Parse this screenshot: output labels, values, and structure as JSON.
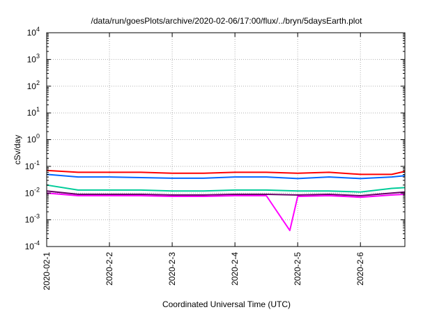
{
  "chart_data": {
    "type": "line",
    "title": "/data/run/goesPlots/archive/2020-02-06/17:00/flux/../bryn/5daysEarth.plot",
    "xlabel": "Coordinated Universal Time (UTC)",
    "ylabel": "cSv/day",
    "log_y": true,
    "ylim": [
      0.0001,
      10000
    ],
    "xlim": [
      "2020-02-01T00:00",
      "2020-02-06T17:00"
    ],
    "x_ticks": [
      "2020-02-1",
      "2020-2-2",
      "2020-2-3",
      "2020-2-4",
      "2020-2-5",
      "2020-2-6"
    ],
    "y_ticks": [
      {
        "base": "10",
        "exp": "-4"
      },
      {
        "base": "10",
        "exp": "-3"
      },
      {
        "base": "10",
        "exp": "-2"
      },
      {
        "base": "10",
        "exp": "-1"
      },
      {
        "base": "10",
        "exp": "0"
      },
      {
        "base": "10",
        "exp": "1"
      },
      {
        "base": "10",
        "exp": "2"
      },
      {
        "base": "10",
        "exp": "3"
      },
      {
        "base": "10",
        "exp": "4"
      }
    ],
    "grid": true,
    "series": [
      {
        "color": "#ff0000",
        "x": [
          "2020-02-01T00:00",
          "2020-02-01T12:00",
          "2020-02-02T00:00",
          "2020-02-02T12:00",
          "2020-02-03T00:00",
          "2020-02-03T12:00",
          "2020-02-04T00:00",
          "2020-02-04T12:00",
          "2020-02-05T00:00",
          "2020-02-05T12:00",
          "2020-02-06T00:00",
          "2020-02-06T12:00",
          "2020-02-06T17:00"
        ],
        "y": [
          0.07,
          0.06,
          0.06,
          0.06,
          0.055,
          0.055,
          0.06,
          0.06,
          0.055,
          0.06,
          0.05,
          0.05,
          0.065
        ]
      },
      {
        "color": "#0066ff",
        "x": [
          "2020-02-01T00:00",
          "2020-02-01T12:00",
          "2020-02-02T00:00",
          "2020-02-02T12:00",
          "2020-02-03T00:00",
          "2020-02-03T12:00",
          "2020-02-04T00:00",
          "2020-02-04T12:00",
          "2020-02-05T00:00",
          "2020-02-05T12:00",
          "2020-02-06T00:00",
          "2020-02-06T12:00",
          "2020-02-06T17:00"
        ],
        "y": [
          0.05,
          0.04,
          0.04,
          0.038,
          0.036,
          0.036,
          0.04,
          0.04,
          0.035,
          0.04,
          0.035,
          0.04,
          0.045
        ]
      },
      {
        "color": "#00cc99",
        "x": [
          "2020-02-01T00:00",
          "2020-02-01T12:00",
          "2020-02-02T00:00",
          "2020-02-02T12:00",
          "2020-02-03T00:00",
          "2020-02-03T12:00",
          "2020-02-04T00:00",
          "2020-02-04T12:00",
          "2020-02-05T00:00",
          "2020-02-05T12:00",
          "2020-02-06T00:00",
          "2020-02-06T12:00",
          "2020-02-06T17:00"
        ],
        "y": [
          0.02,
          0.013,
          0.013,
          0.013,
          0.012,
          0.012,
          0.013,
          0.013,
          0.012,
          0.012,
          0.011,
          0.015,
          0.016
        ]
      },
      {
        "color": "#660066",
        "x": [
          "2020-02-01T00:00",
          "2020-02-01T12:00",
          "2020-02-02T00:00",
          "2020-02-02T12:00",
          "2020-02-03T00:00",
          "2020-02-03T12:00",
          "2020-02-04T00:00",
          "2020-02-04T12:00",
          "2020-02-05T00:00",
          "2020-02-05T12:00",
          "2020-02-06T00:00",
          "2020-02-06T12:00",
          "2020-02-06T17:00"
        ],
        "y": [
          0.012,
          0.009,
          0.009,
          0.009,
          0.0085,
          0.0085,
          0.009,
          0.009,
          0.0085,
          0.009,
          0.008,
          0.01,
          0.011
        ]
      },
      {
        "color": "#ff00ff",
        "x": [
          "2020-02-01T00:00",
          "2020-02-01T12:00",
          "2020-02-02T00:00",
          "2020-02-02T12:00",
          "2020-02-03T00:00",
          "2020-02-03T12:00",
          "2020-02-04T00:00",
          "2020-02-04T12:00",
          "2020-02-04T21:00",
          "2020-02-05T00:00",
          "2020-02-05T12:00",
          "2020-02-06T00:00",
          "2020-02-06T12:00",
          "2020-02-06T17:00"
        ],
        "y": [
          0.01,
          0.008,
          0.008,
          0.008,
          0.0075,
          0.0075,
          0.008,
          0.008,
          0.0004,
          0.0075,
          0.008,
          0.007,
          0.0085,
          0.009
        ]
      }
    ]
  }
}
